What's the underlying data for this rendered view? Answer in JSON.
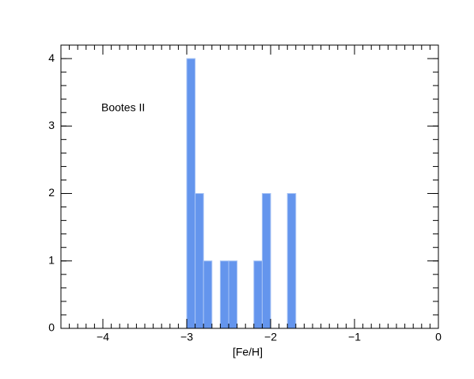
{
  "chart_data": {
    "type": "histogram",
    "annotation": "Bootes II",
    "x_label": "[Fe/H]",
    "bins": [
      -3.0,
      -2.9,
      -2.8,
      -2.7,
      -2.6,
      -2.5,
      -2.4,
      -2.3,
      -2.2,
      -2.1,
      -2.0,
      -1.9,
      -1.8,
      -1.7
    ],
    "values": [
      4,
      2,
      1,
      0,
      1,
      1,
      0,
      0,
      1,
      2,
      0,
      0,
      2
    ],
    "color": "#6495ed",
    "xlim": [
      -4.5,
      0
    ],
    "ylim": [
      0,
      4.2
    ],
    "xticks": [
      {
        "value": -4,
        "label": "−4"
      },
      {
        "value": -3,
        "label": "−3"
      },
      {
        "value": -2,
        "label": "−2"
      },
      {
        "value": -1,
        "label": "−1"
      },
      0
    ],
    "yticks": [
      0,
      1,
      2,
      3,
      4
    ]
  }
}
